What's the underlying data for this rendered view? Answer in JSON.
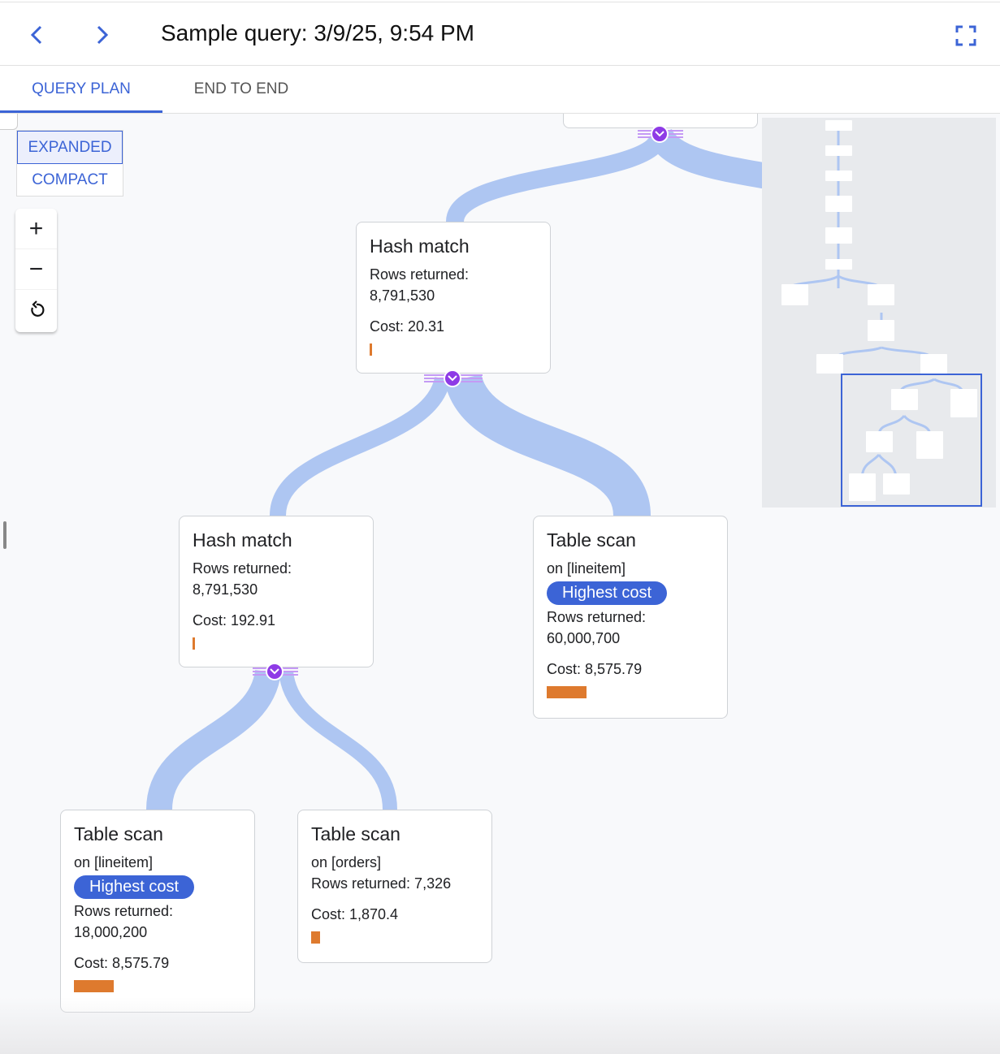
{
  "header": {
    "title": "Sample query: 3/9/25, 9:54 PM",
    "back_icon": "chevron-left-icon",
    "forward_icon": "chevron-right-icon",
    "fullscreen_icon": "fullscreen-icon"
  },
  "tabs": [
    {
      "label": "QUERY PLAN",
      "active": true
    },
    {
      "label": "END TO END",
      "active": false
    }
  ],
  "view_toggle": {
    "options": [
      "EXPANDED",
      "COMPACT"
    ],
    "selected": "EXPANDED"
  },
  "zoom_controls": {
    "zoom_in": "+",
    "zoom_out": "−",
    "reset_icon": "reset-icon"
  },
  "colors": {
    "accent": "#3c64d6",
    "edge": "#aec6f2",
    "connector": "#8e3be6",
    "cost_bar": "#de7a2e"
  },
  "nodes": [
    {
      "title": "Hash match",
      "rows_label": "Rows returned:",
      "rows": "8,791,530",
      "cost": "Cost: 20.31"
    },
    {
      "title": "Hash match",
      "rows_label": "Rows returned:",
      "rows": "8,791,530",
      "cost": "Cost: 192.91"
    },
    {
      "title": "Table scan",
      "on": "on [lineitem]",
      "badge": "Highest cost",
      "rows_label": "Rows returned:",
      "rows": "60,000,700",
      "cost": "Cost: 8,575.79"
    },
    {
      "title": "Table scan",
      "on": "on [lineitem]",
      "badge": "Highest cost",
      "rows_label": "Rows returned:",
      "rows": "18,000,200",
      "cost": "Cost: 8,575.79"
    },
    {
      "title": "Table scan",
      "on": "on [orders]",
      "rows_line": "Rows returned: 7,326",
      "cost": "Cost: 1,870.4"
    }
  ]
}
